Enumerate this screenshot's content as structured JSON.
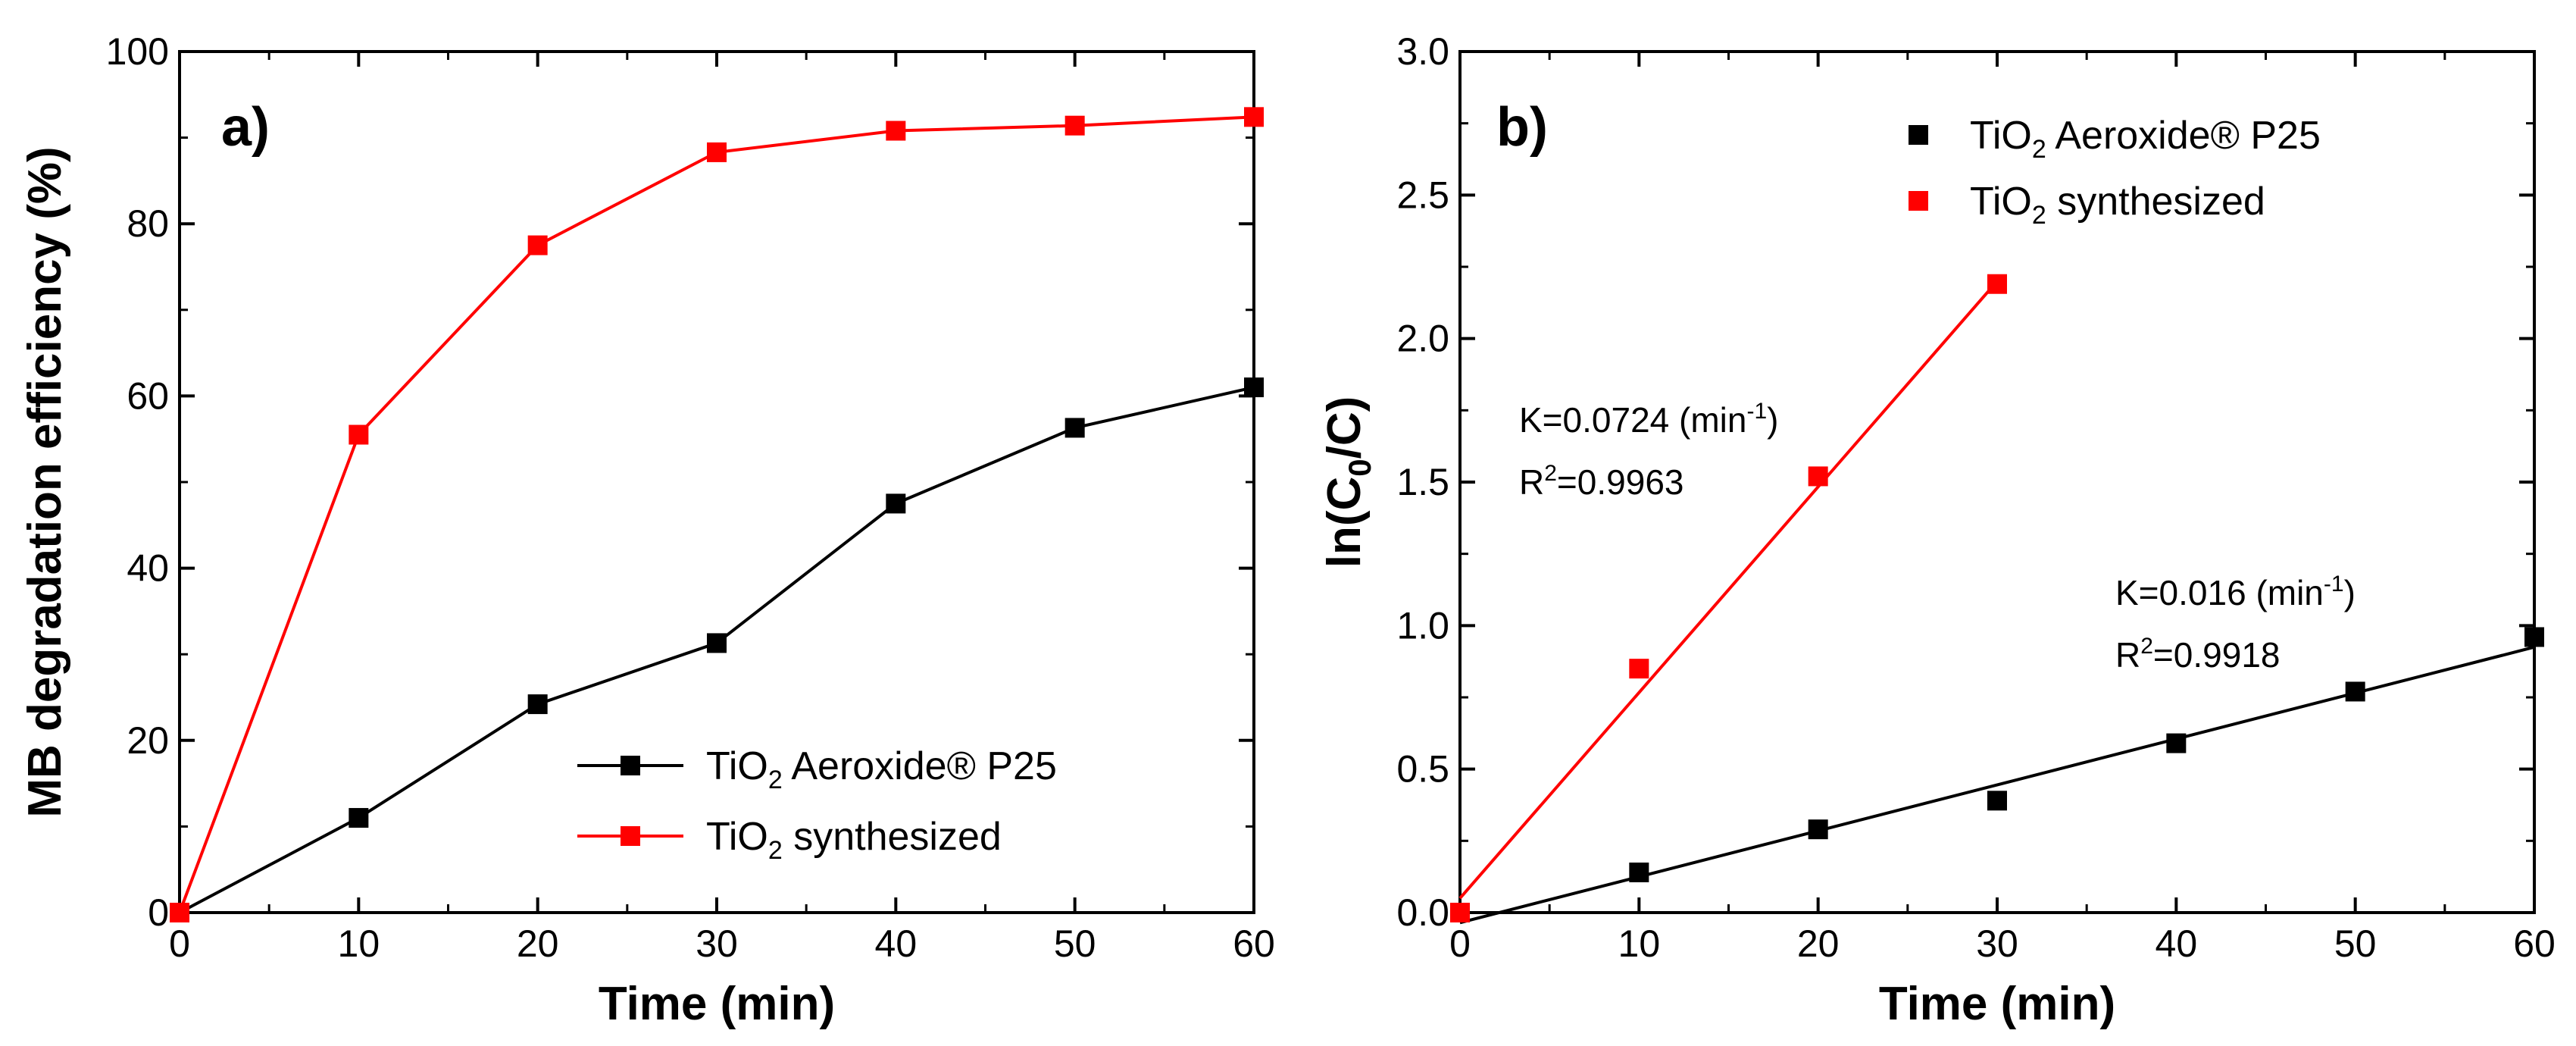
{
  "chart_data": [
    {
      "type": "line",
      "panel_label": "a)",
      "xlabel": "Time (min)",
      "ylabel": "MB degradation efficiency (%)",
      "xlim": [
        0,
        60
      ],
      "ylim": [
        0,
        100
      ],
      "xticks": [
        "0",
        "10",
        "20",
        "30",
        "40",
        "50",
        "60"
      ],
      "yticks": [
        "0",
        "20",
        "40",
        "60",
        "80",
        "100"
      ],
      "legend_position": "bottom-right",
      "series": [
        {
          "name": "TiO2 Aeroxide® P25",
          "name_main": "TiO",
          "name_sub": "2",
          "name_rest": " Aeroxide® P25",
          "color": "#000000",
          "x": [
            0,
            10,
            20,
            30,
            40,
            50,
            60
          ],
          "values": [
            0,
            11,
            24.2,
            31.3,
            47.5,
            56.3,
            61
          ]
        },
        {
          "name": "TiO2 synthesized",
          "name_main": "TiO",
          "name_sub": "2",
          "name_rest": " synthesized",
          "color": "#ff0000",
          "x": [
            0,
            10,
            20,
            30,
            40,
            50,
            60
          ],
          "values": [
            0,
            55.5,
            77.5,
            88.3,
            90.8,
            91.4,
            92.4
          ]
        }
      ]
    },
    {
      "type": "scatter",
      "panel_label": "b)",
      "xlabel": "Time (min)",
      "ylabel_main": "ln(C",
      "ylabel_sub": "0",
      "ylabel_rest": "/C)",
      "xlim": [
        0,
        60
      ],
      "ylim": [
        0,
        3.0
      ],
      "xticks": [
        "0",
        "10",
        "20",
        "30",
        "40",
        "50",
        "60"
      ],
      "yticks": [
        "0.0",
        "0.5",
        "1.0",
        "1.5",
        "2.0",
        "2.5",
        "3.0"
      ],
      "legend_position": "top-right",
      "series": [
        {
          "name": "TiO2 Aeroxide® P25",
          "name_main": "TiO",
          "name_sub": "2",
          "name_rest": " Aeroxide® P25",
          "color": "#000000",
          "x": [
            0,
            10,
            20,
            30,
            40,
            50,
            60
          ],
          "values": [
            0.0,
            0.14,
            0.29,
            0.39,
            0.59,
            0.77,
            0.96
          ],
          "fit": {
            "x": [
              0,
              60
            ],
            "y": [
              -0.035,
              0.925
            ],
            "k_prefix": "K=0.016 (min",
            "k_sup": "-1",
            "k_suffix": ")",
            "r_prefix": "R",
            "r_sup": "2",
            "r_suffix": "=0.9918"
          }
        },
        {
          "name": "TiO2 synthesized",
          "name_main": "TiO",
          "name_sub": "2",
          "name_rest": " synthesized",
          "color": "#ff0000",
          "x": [
            0,
            10,
            20,
            30
          ],
          "values": [
            0.0,
            0.85,
            1.52,
            2.19
          ],
          "fit": {
            "x": [
              0,
              30
            ],
            "y": [
              0.05,
              2.2
            ],
            "k_prefix": "K=0.0724 (min",
            "k_sup": "-1",
            "k_suffix": ")",
            "r_prefix": "R",
            "r_sup": "2",
            "r_suffix": "=0.9963"
          }
        }
      ]
    }
  ]
}
